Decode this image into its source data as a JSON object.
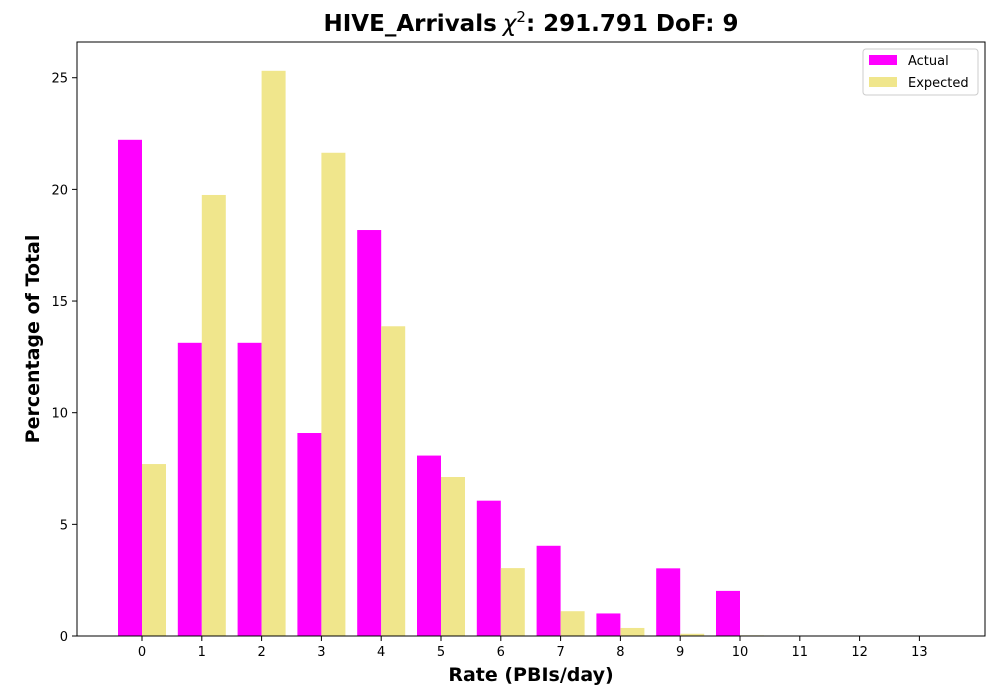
{
  "chart_data": {
    "type": "bar",
    "title_prefix": "HIVE_Arrivals",
    "title_chi": "χ",
    "title_sup": "2",
    "title_suffix": ": 291.791 DoF: 9",
    "xlabel": "Rate (PBIs/day)",
    "ylabel": "Percentage of Total",
    "categories": [
      "0",
      "1",
      "2",
      "3",
      "4",
      "5",
      "6",
      "7",
      "8",
      "9",
      "10",
      "11",
      "12",
      "13"
    ],
    "ylim": [
      0,
      26.6
    ],
    "yticks": [
      "0",
      "5",
      "10",
      "15",
      "20",
      "25"
    ],
    "legend_position": "top-right",
    "series": [
      {
        "name": "Actual",
        "color": "#ff00ff",
        "values": [
          22.22,
          13.13,
          13.13,
          9.09,
          18.18,
          8.08,
          6.06,
          4.04,
          1.01,
          3.03,
          2.02,
          0,
          0,
          0
        ]
      },
      {
        "name": "Expected",
        "color": "#f0e68c",
        "values": [
          7.7,
          19.75,
          25.31,
          21.64,
          13.87,
          7.12,
          3.04,
          1.11,
          0.36,
          0.1,
          0.03,
          0.01,
          0.0,
          0.0
        ]
      }
    ]
  }
}
